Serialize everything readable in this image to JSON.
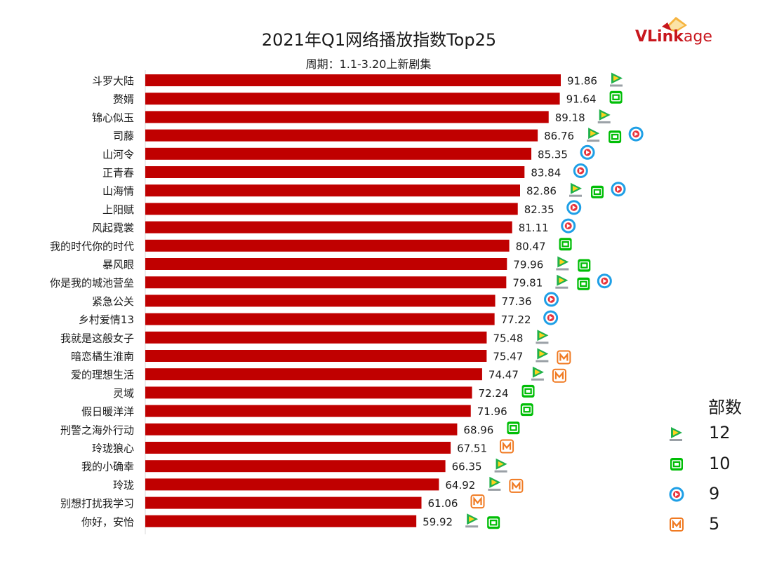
{
  "header": {
    "title": "2021年Q1网络播放指数Top25",
    "subtitle": "周期：1.1-3.20上新剧集"
  },
  "logo": {
    "text_part1": "VLink",
    "text_part2": "age"
  },
  "legend": {
    "title": "部数",
    "items": [
      {
        "platform": "tencent-video",
        "count": "12"
      },
      {
        "platform": "iqiyi",
        "count": "10"
      },
      {
        "platform": "youku",
        "count": "9"
      },
      {
        "platform": "mgtv",
        "count": "5"
      }
    ]
  },
  "colors": {
    "bar": "#c00000",
    "tencent": "#20b14b",
    "iqiyi": "#00be06",
    "youku": "#1e9fe6",
    "mgtv": "#f07a22"
  },
  "chart_data": {
    "type": "bar",
    "orientation": "horizontal",
    "title": "2021年Q1网络播放指数Top25",
    "subtitle": "周期：1.1-3.20上新剧集",
    "categories": [
      "斗罗大陆",
      "赘婿",
      "锦心似玉",
      "司藤",
      "山河令",
      "正青春",
      "山海情",
      "上阳赋",
      "风起霓裳",
      "我的时代你的时代",
      "暴风眼",
      "你是我的城池营垒",
      "紧急公关",
      "乡村爱情13",
      "我就是这般女子",
      "暗恋橘生淮南",
      "爱的理想生活",
      "灵域",
      "假日暖洋洋",
      "刑警之海外行动",
      "玲珑狼心",
      "我的小确幸",
      "玲珑",
      "别想打扰我学习",
      "你好，安怡"
    ],
    "values": [
      91.86,
      91.64,
      89.18,
      86.76,
      85.35,
      83.84,
      82.86,
      82.35,
      81.11,
      80.47,
      79.96,
      79.81,
      77.36,
      77.22,
      75.48,
      75.47,
      74.47,
      72.24,
      71.96,
      68.96,
      67.51,
      66.35,
      64.92,
      61.06,
      59.92
    ],
    "labels": [
      "91.86",
      "91.64",
      "89.18",
      "86.76",
      "85.35",
      "83.84",
      "82.86",
      "82.35",
      "81.11",
      "80.47",
      "79.96",
      "79.81",
      "77.36",
      "77.22",
      "75.48",
      "75.47",
      "74.47",
      "72.24",
      "71.96",
      "68.96",
      "67.51",
      "66.35",
      "64.92",
      "61.06",
      "59.92"
    ],
    "platforms": [
      [
        "tencent"
      ],
      [
        "iqiyi"
      ],
      [
        "tencent"
      ],
      [
        "tencent",
        "iqiyi",
        "youku"
      ],
      [
        "youku"
      ],
      [
        "youku"
      ],
      [
        "tencent",
        "iqiyi",
        "youku"
      ],
      [
        "youku"
      ],
      [
        "youku"
      ],
      [
        "iqiyi"
      ],
      [
        "tencent",
        "iqiyi"
      ],
      [
        "tencent",
        "iqiyi",
        "youku"
      ],
      [
        "youku"
      ],
      [
        "youku"
      ],
      [
        "tencent"
      ],
      [
        "tencent",
        "mgtv"
      ],
      [
        "tencent",
        "mgtv"
      ],
      [
        "iqiyi"
      ],
      [
        "iqiyi"
      ],
      [
        "iqiyi"
      ],
      [
        "mgtv"
      ],
      [
        "tencent"
      ],
      [
        "tencent",
        "mgtv"
      ],
      [
        "mgtv"
      ],
      [
        "tencent",
        "iqiyi"
      ]
    ],
    "xlim": [
      0,
      91.86
    ],
    "grid": false,
    "legend_position": "bottom-right"
  }
}
